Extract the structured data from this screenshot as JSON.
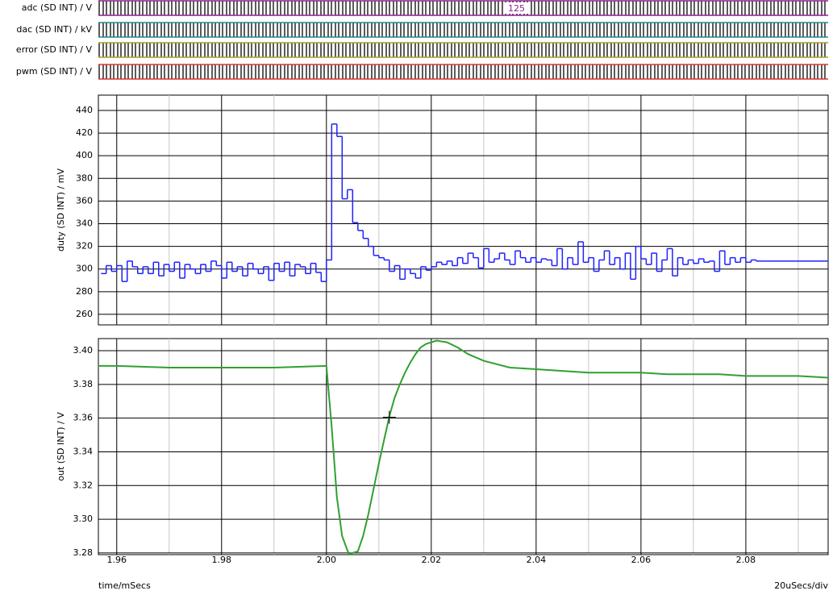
{
  "chart_data": [
    {
      "type": "digital",
      "traces": [
        {
          "name": "adc (SD INT) / V",
          "color": "#8e1f8e",
          "annotation": "125"
        },
        {
          "name": "dac (SD INT) / kV",
          "color": "#1f8a8e"
        },
        {
          "name": "error (SD INT) / V",
          "color": "#a0a020"
        },
        {
          "name": "pwm (SD INT) / V",
          "color": "#e03030"
        }
      ]
    },
    {
      "type": "step",
      "y_label": "duty (SD INT) / mV",
      "xlim": [
        1.9565,
        2.0957
      ],
      "ylim": [
        250.7,
        453.5
      ],
      "xticks": [
        1.96,
        1.98,
        2.0,
        2.02,
        2.04,
        2.06,
        2.08
      ],
      "minor_xticks": [
        1.97,
        1.99,
        2.01,
        2.03,
        2.05,
        2.07,
        2.09
      ],
      "yticks": [
        260,
        280,
        300,
        320,
        340,
        360,
        380,
        400,
        420,
        440
      ],
      "grid": true,
      "color": "#2020ff",
      "x": [
        1.957,
        1.958,
        1.959,
        1.96,
        1.961,
        1.962,
        1.963,
        1.964,
        1.965,
        1.966,
        1.967,
        1.968,
        1.969,
        1.97,
        1.971,
        1.972,
        1.973,
        1.974,
        1.975,
        1.976,
        1.977,
        1.978,
        1.979,
        1.98,
        1.981,
        1.982,
        1.983,
        1.984,
        1.985,
        1.986,
        1.987,
        1.988,
        1.989,
        1.99,
        1.991,
        1.992,
        1.993,
        1.994,
        1.995,
        1.996,
        1.997,
        1.998,
        1.999,
        2.0,
        2.001,
        2.002,
        2.003,
        2.004,
        2.005,
        2.006,
        2.007,
        2.008,
        2.009,
        2.01,
        2.011,
        2.012,
        2.013,
        2.014,
        2.015,
        2.016,
        2.017,
        2.018,
        2.019,
        2.02,
        2.021,
        2.022,
        2.023,
        2.024,
        2.025,
        2.026,
        2.027,
        2.028,
        2.029,
        2.03,
        2.031,
        2.032,
        2.033,
        2.034,
        2.035,
        2.036,
        2.037,
        2.038,
        2.039,
        2.04,
        2.041,
        2.042,
        2.043,
        2.044,
        2.045,
        2.046,
        2.047,
        2.048,
        2.049,
        2.05,
        2.051,
        2.052,
        2.053,
        2.054,
        2.055,
        2.056,
        2.057,
        2.058,
        2.059,
        2.06,
        2.061,
        2.062,
        2.063,
        2.064,
        2.065,
        2.066,
        2.067,
        2.068,
        2.069,
        2.07,
        2.071,
        2.072,
        2.073,
        2.074,
        2.075,
        2.076,
        2.077,
        2.078,
        2.079,
        2.08,
        2.081,
        2.082,
        2.083
      ],
      "values": [
        296,
        303,
        298,
        303,
        289,
        307,
        302,
        296,
        302,
        296,
        306,
        294,
        304,
        298,
        306,
        292,
        304,
        300,
        296,
        304,
        298,
        307,
        303,
        292,
        306,
        298,
        302,
        294,
        305,
        300,
        296,
        302,
        290,
        305,
        298,
        306,
        294,
        304,
        302,
        296,
        305,
        297,
        289,
        308,
        428,
        417,
        362,
        370,
        341,
        334,
        327,
        320,
        312,
        310,
        308,
        298,
        303,
        291,
        300,
        296,
        292,
        302,
        299,
        302,
        306,
        304,
        307,
        303,
        310,
        305,
        314,
        310,
        301,
        318,
        306,
        309,
        314,
        308,
        304,
        316,
        310,
        306,
        310,
        306,
        309,
        308,
        303,
        318,
        300,
        310,
        304,
        324,
        306,
        310,
        298,
        308,
        316,
        304,
        310,
        300,
        314,
        291,
        320,
        309,
        304,
        314,
        298,
        308,
        318,
        294,
        310,
        304,
        308,
        305,
        309,
        306,
        307,
        298,
        316,
        304,
        310,
        306,
        310,
        306,
        308,
        307,
        307
      ]
    },
    {
      "type": "line",
      "y_label": "out (SD INT) / V",
      "x_label": "time/mSecs",
      "x_scale_label": "20uSecs/div",
      "xlim": [
        1.9565,
        2.0957
      ],
      "ylim": [
        3.279,
        3.4072
      ],
      "xticks": [
        1.96,
        1.98,
        {
          "value": 2.0,
          "label": "2.00"
        },
        2.02,
        2.04,
        2.06,
        2.08
      ],
      "minor_xticks": [
        1.97,
        1.99,
        2.01,
        2.03,
        2.05,
        2.07,
        2.09
      ],
      "yticks": [
        {
          "value": 3.28,
          "label": "3.28"
        },
        {
          "value": 3.3,
          "label": "3.30"
        },
        3.32,
        3.34,
        3.36,
        3.38,
        {
          "value": 3.4,
          "label": "3.40"
        }
      ],
      "grid": true,
      "color": "#30a030",
      "x": [
        1.9565,
        1.96,
        1.97,
        1.98,
        1.99,
        2.0,
        2.001,
        2.002,
        2.003,
        2.0043,
        2.005,
        2.006,
        2.007,
        2.008,
        2.009,
        2.01,
        2.011,
        2.012,
        2.013,
        2.014,
        2.015,
        2.016,
        2.017,
        2.018,
        2.019,
        2.021,
        2.023,
        2.025,
        2.027,
        2.03,
        2.035,
        2.04,
        2.045,
        2.05,
        2.055,
        2.06,
        2.065,
        2.07,
        2.075,
        2.08,
        2.085,
        2.09,
        2.0957
      ],
      "values": [
        3.391,
        3.391,
        3.39,
        3.39,
        3.39,
        3.391,
        3.355,
        3.313,
        3.29,
        3.279,
        3.28,
        3.281,
        3.29,
        3.303,
        3.318,
        3.333,
        3.347,
        3.361,
        3.372,
        3.38,
        3.387,
        3.393,
        3.398,
        3.402,
        3.404,
        3.406,
        3.405,
        3.402,
        3.398,
        3.394,
        3.39,
        3.389,
        3.388,
        3.387,
        3.387,
        3.387,
        3.386,
        3.386,
        3.386,
        3.385,
        3.385,
        3.385,
        3.384
      ],
      "cursor": {
        "x": 2.012,
        "y": 3.3605
      }
    }
  ]
}
